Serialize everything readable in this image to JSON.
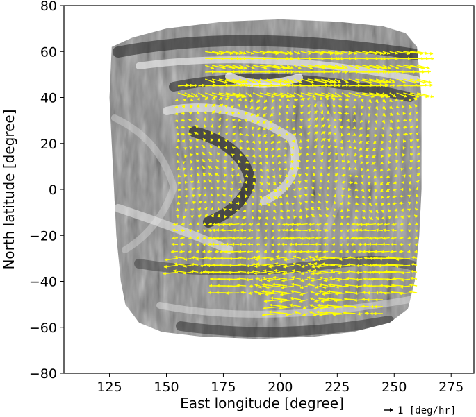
{
  "chart_data": {
    "type": "quiver",
    "xlabel": "East longitude [degree]",
    "ylabel": "North latitude [degree]",
    "xlim": [
      105,
      285
    ],
    "ylim": [
      -80,
      80
    ],
    "xticks": [
      125,
      150,
      175,
      200,
      225,
      250,
      275
    ],
    "yticks": [
      -80,
      -60,
      -40,
      -20,
      0,
      20,
      40,
      60,
      80
    ],
    "key": {
      "u": 1,
      "label": "1 [deg/hr]"
    },
    "colors": {
      "arrow": "#ffff00",
      "frame": "#000000"
    },
    "background": "grayscale filtered planetary image",
    "grid": false
  }
}
